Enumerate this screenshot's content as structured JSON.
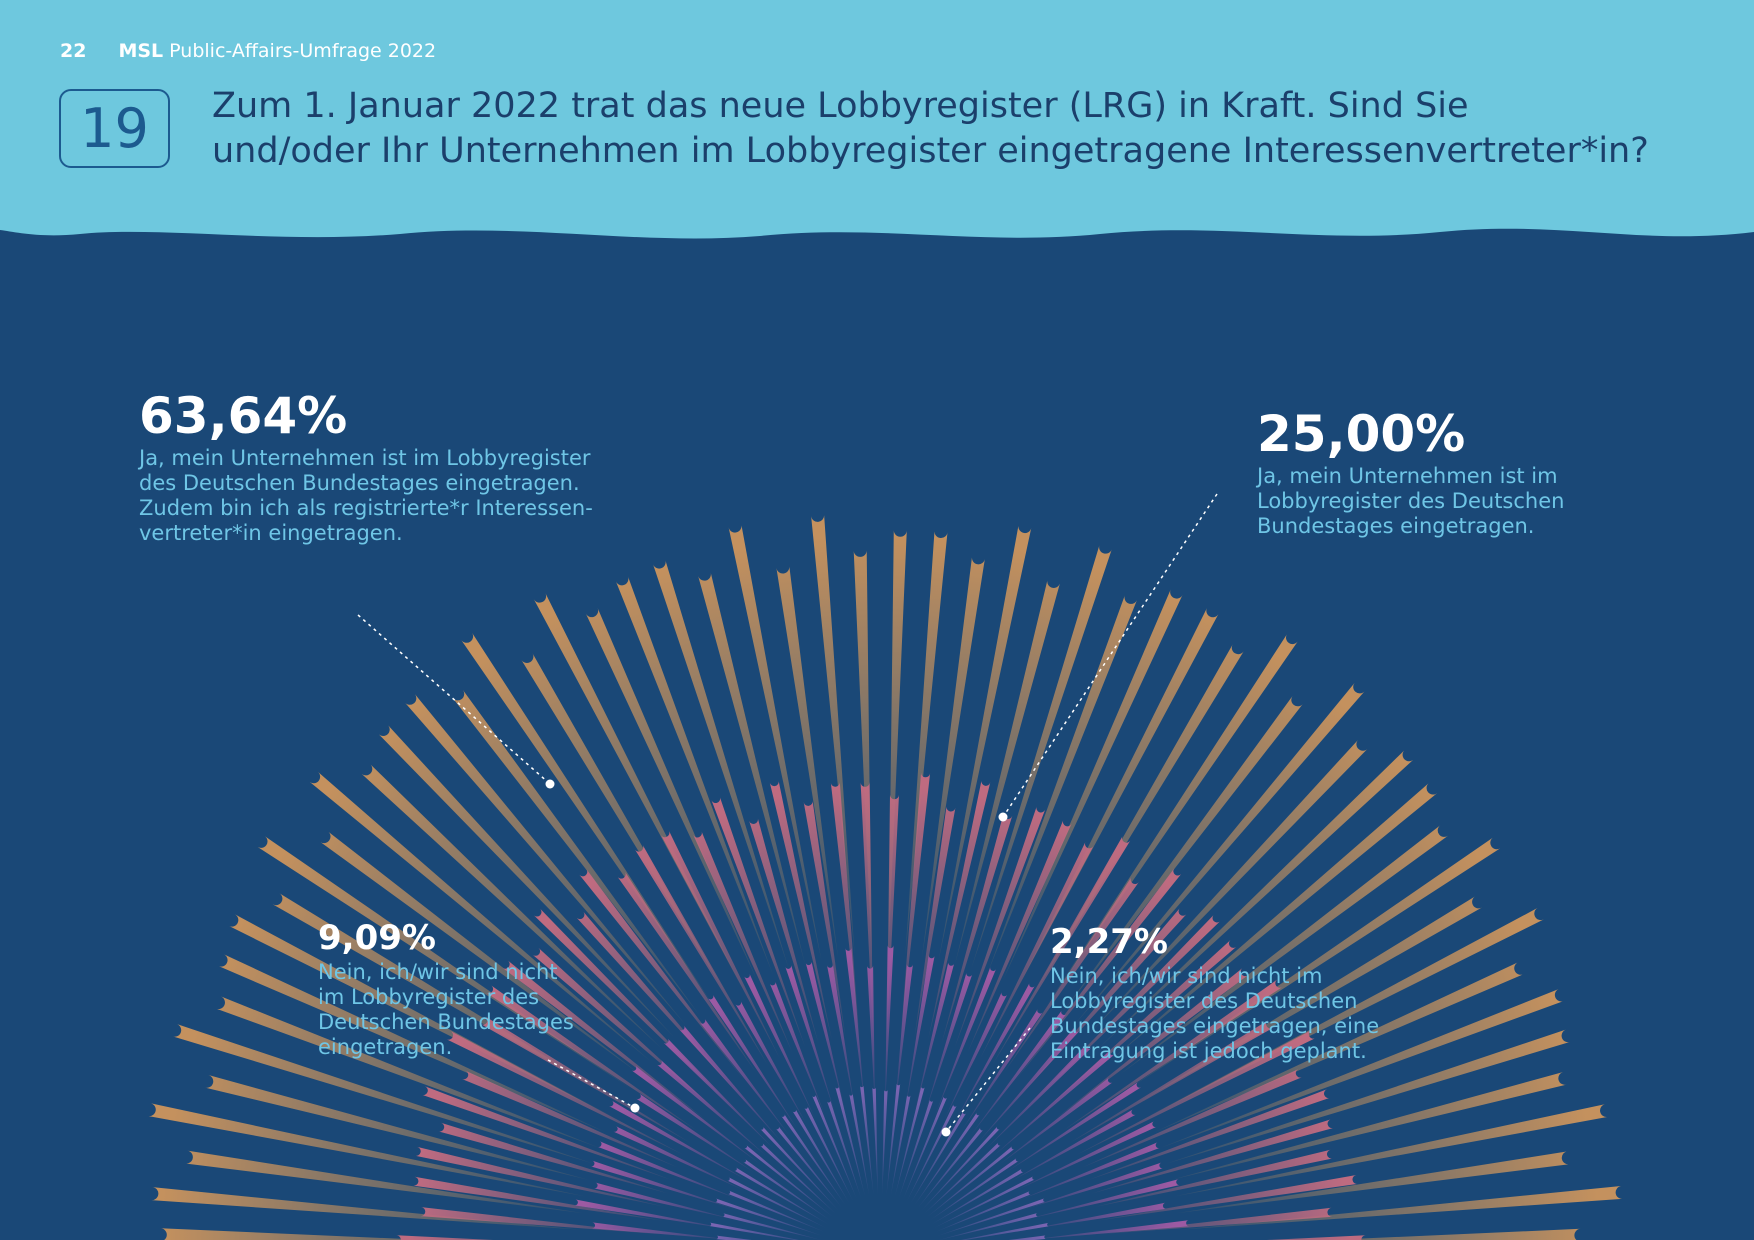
{
  "header": {
    "page_number": "22",
    "brand": "MSL",
    "publication": "Public-Affairs-Umfrage 2022",
    "question_number": "19",
    "question_line1": "Zum 1. Januar 2022 trat das neue Lobbyregister (LRG) in Kraft. Sind Sie",
    "question_line2": "und/oder Ihr Unternehmen im Lobbyregister eingetragene Interessenvertreter*in?"
  },
  "colors": {
    "header_background": "#6ec8de",
    "page_background": "#1a4877",
    "title_text": "#1b3f6b",
    "label_text": "#6fc6e6",
    "value_text": "#ffffff",
    "ring_outer": "#c4915e",
    "ring_second": "#bf6b80",
    "ring_third": "#9d5aa3",
    "ring_inner": "#7a65b2"
  },
  "chart_data": {
    "type": "radial",
    "categories": [
      "Ja, mein Unternehmen ist im Lobbyregister des Deutschen Bundestages eingetragen. Zudem bin ich als registrierte*r Interessen-vertreter*in eingetragen.",
      "Ja, mein Unternehmen ist im Lobbyregister des Deutschen Bundestages eingetragen.",
      "Nein, ich/wir sind nicht im Lobbyregister des Deutschen Bundestages eingetragen.",
      "Nein, ich/wir sind nicht im Lobbyregister des Deutschen Bundestages eingetragen, eine Eintragung ist jedoch geplant."
    ],
    "values": [
      63.64,
      25.0,
      9.09,
      2.27
    ],
    "value_labels": [
      "63,64%",
      "25,00%",
      "9,09%",
      "2,27%"
    ],
    "unit": "%",
    "rings": [
      {
        "value": 63.64,
        "color": "#c4915e"
      },
      {
        "value": 25.0,
        "color": "#bf6b80"
      },
      {
        "value": 9.09,
        "color": "#9d5aa3"
      },
      {
        "value": 2.27,
        "color": "#7a65b2"
      }
    ]
  },
  "labels": {
    "a_pct": "63,64%",
    "a_desc_1": "Ja, mein Unternehmen ist im Lobbyregister",
    "a_desc_2": "des Deutschen Bundestages eingetragen.",
    "a_desc_3": "Zudem bin ich als registrierte*r Interessen-",
    "a_desc_4": "vertreter*in eingetragen.",
    "b_pct": "25,00%",
    "b_desc_1": "Ja, mein Unternehmen ist im",
    "b_desc_2": "Lobbyregister des Deutschen",
    "b_desc_3": "Bundestages eingetragen.",
    "c_pct": "9,09%",
    "c_desc_1": "Nein, ich/wir sind nicht",
    "c_desc_2": "im Lobbyregister des",
    "c_desc_3": "Deutschen Bundestages",
    "c_desc_4": "eingetragen.",
    "d_pct": "2,27%",
    "d_desc_1": "Nein, ich/wir sind nicht im",
    "d_desc_2": "Lobbyregister des Deutschen",
    "d_desc_3": "Bundestages eingetragen, eine",
    "d_desc_4": "Eintragung ist jedoch geplant."
  }
}
